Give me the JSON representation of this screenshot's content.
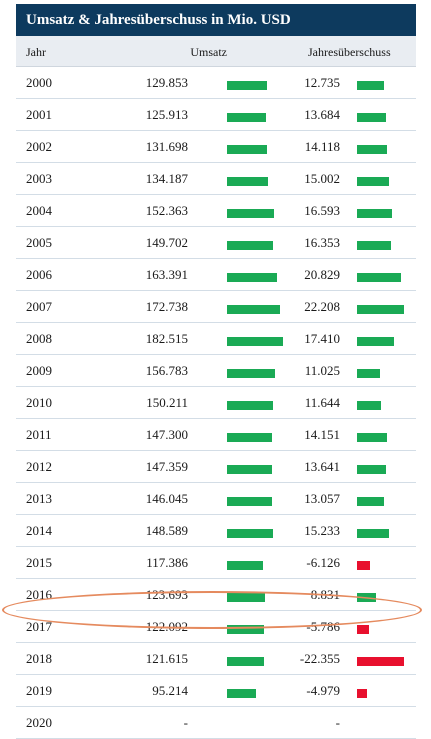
{
  "title": "Umsatz & Jahresüberschuss in Mio. USD",
  "columns": {
    "year": "Jahr",
    "umsatz": "Umsatz",
    "jue": "Jahresüberschuss"
  },
  "colors": {
    "header_bg": "#0d3a5e",
    "positive": "#1aaa55",
    "negative": "#e8102e",
    "highlight": "#e58a5e"
  },
  "highlighted_year": "2017",
  "rows": [
    {
      "year": "2000",
      "umsatz": "129.853",
      "jue": "12.735"
    },
    {
      "year": "2001",
      "umsatz": "125.913",
      "jue": "13.684"
    },
    {
      "year": "2002",
      "umsatz": "131.698",
      "jue": "14.118"
    },
    {
      "year": "2003",
      "umsatz": "134.187",
      "jue": "15.002"
    },
    {
      "year": "2004",
      "umsatz": "152.363",
      "jue": "16.593"
    },
    {
      "year": "2005",
      "umsatz": "149.702",
      "jue": "16.353"
    },
    {
      "year": "2006",
      "umsatz": "163.391",
      "jue": "20.829"
    },
    {
      "year": "2007",
      "umsatz": "172.738",
      "jue": "22.208"
    },
    {
      "year": "2008",
      "umsatz": "182.515",
      "jue": "17.410"
    },
    {
      "year": "2009",
      "umsatz": "156.783",
      "jue": "11.025"
    },
    {
      "year": "2010",
      "umsatz": "150.211",
      "jue": "11.644"
    },
    {
      "year": "2011",
      "umsatz": "147.300",
      "jue": "14.151"
    },
    {
      "year": "2012",
      "umsatz": "147.359",
      "jue": "13.641"
    },
    {
      "year": "2013",
      "umsatz": "146.045",
      "jue": "13.057"
    },
    {
      "year": "2014",
      "umsatz": "148.589",
      "jue": "15.233"
    },
    {
      "year": "2015",
      "umsatz": "117.386",
      "jue": "-6.126"
    },
    {
      "year": "2016",
      "umsatz": "123.693",
      "jue": "8.831"
    },
    {
      "year": "2017",
      "umsatz": "122.092",
      "jue": "-5.786"
    },
    {
      "year": "2018",
      "umsatz": "121.615",
      "jue": "-22.355"
    },
    {
      "year": "2019",
      "umsatz": "95.214",
      "jue": "-4.979"
    },
    {
      "year": "2020",
      "umsatz": "-",
      "jue": "-"
    }
  ]
}
